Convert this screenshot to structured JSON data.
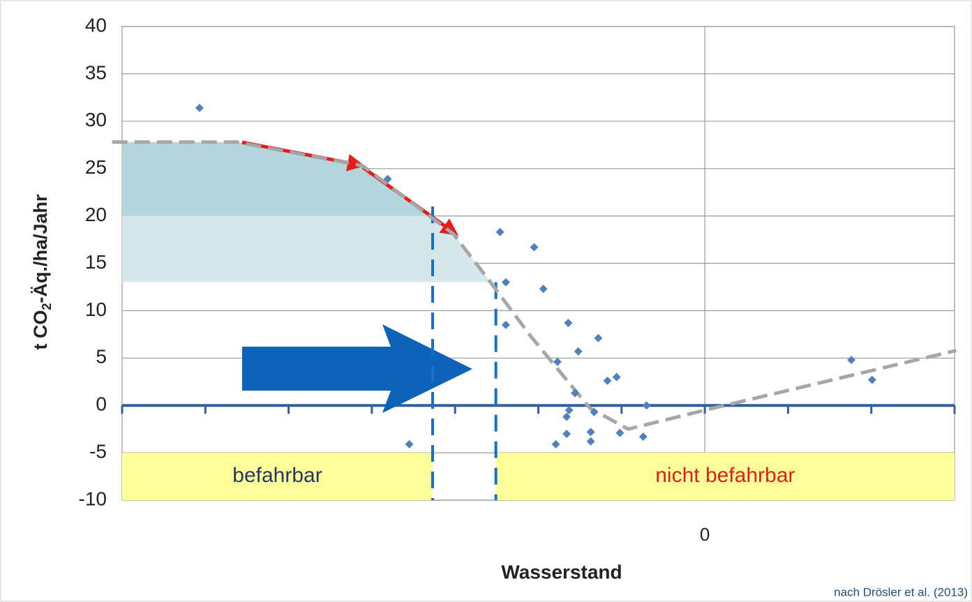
{
  "chart_data": {
    "type": "scatter",
    "ylabel": [
      "t CO",
      "2",
      "-Äq./ha/Jahr"
    ],
    "xlabel": "Wasserstand",
    "source": "nach Drösler et al. (2013)",
    "xlim": [
      -7,
      3
    ],
    "ylim": [
      -10,
      40
    ],
    "yticks": [
      -10,
      -5,
      0,
      5,
      10,
      15,
      20,
      25,
      30,
      35,
      40
    ],
    "xticks": [
      0
    ],
    "xminor": [
      -7,
      -6,
      -5,
      -4,
      -3,
      -2,
      -1,
      0,
      1,
      2,
      3
    ],
    "grid": true,
    "color": "#4f81bd",
    "x": [
      -6.07,
      -3.81,
      -3.55,
      -2.46,
      -2.39,
      -2.39,
      -2.05,
      -1.94,
      -1.79,
      -1.77,
      -1.64,
      -1.66,
      -1.66,
      -1.56,
      -1.52,
      -1.63,
      -1.37,
      -1.37,
      -1.33,
      -1.28,
      -1.17,
      -1.06,
      -1.02,
      -0.74,
      -0.7,
      1.76,
      2.01
    ],
    "values": [
      31.4,
      23.9,
      -4.1,
      18.3,
      13.0,
      8.5,
      16.7,
      12.3,
      -4.1,
      4.6,
      8.7,
      -1.2,
      -3.0,
      1.3,
      5.7,
      -0.5,
      -3.8,
      -2.8,
      -0.7,
      7.1,
      2.6,
      3.0,
      -2.9,
      -3.3,
      0.0,
      4.8,
      2.7
    ],
    "trend": {
      "color": "#a6a6a6",
      "x": [
        -7.12,
        -5.62,
        -4.11,
        -3.02,
        -2.6,
        -2.1,
        -1.38,
        -0.92,
        0,
        3.02
      ],
      "values": [
        27.8,
        27.8,
        25.3,
        18.1,
        13.3,
        7.4,
        -0.3,
        -2.5,
        -0.5,
        5.8
      ]
    },
    "bands": [
      {
        "from": 20,
        "to": 28,
        "color": "#b4d6dd"
      },
      {
        "from": 13,
        "to": 20,
        "color": "#d4e7eb"
      }
    ],
    "zone_y": [
      -10,
      -5
    ],
    "zone_fill": "#ffff99",
    "zones": [
      {
        "label": "befahrbar",
        "from": -7,
        "to": -3.27,
        "color": "#1f3864"
      },
      {
        "label": "nicht befahrbar",
        "from": -2.51,
        "to": 3,
        "color": "#e31c1c"
      }
    ],
    "thresholds": [
      {
        "x": -3.27,
        "top": 21
      },
      {
        "x": -2.51,
        "top": 13
      }
    ],
    "zero_color": "#2e5fa3"
  }
}
